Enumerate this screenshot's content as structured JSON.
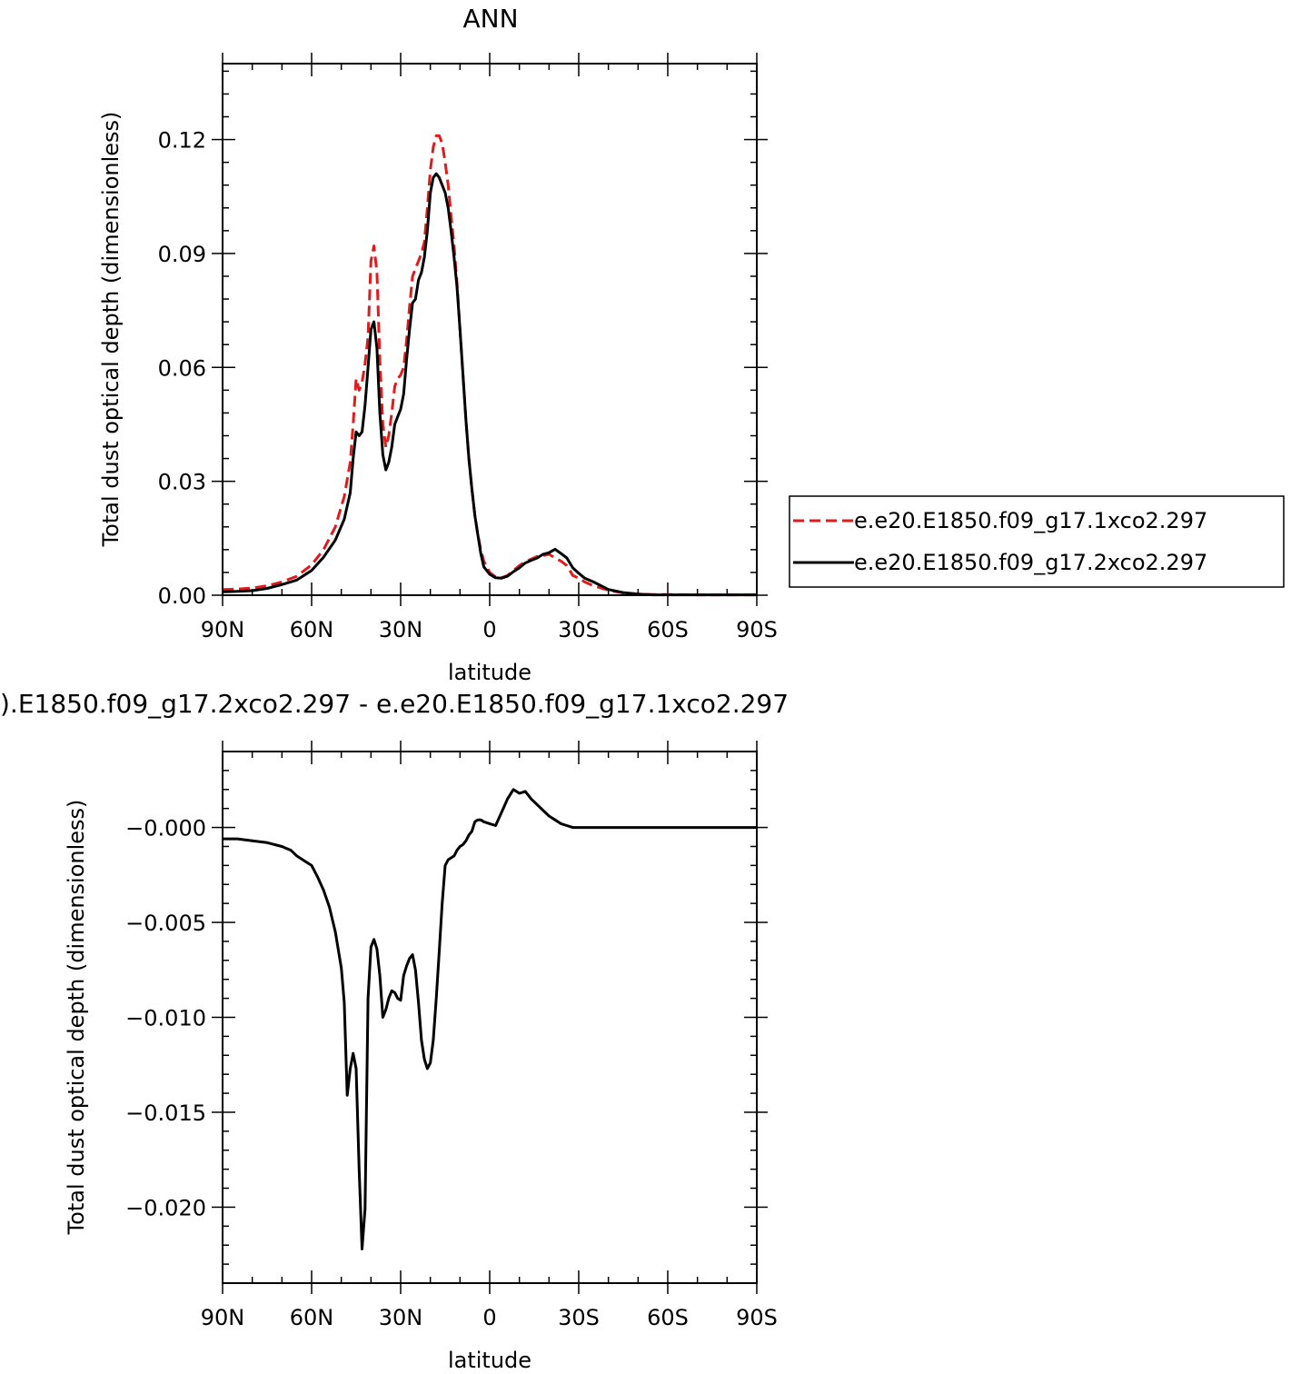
{
  "chart_data": [
    {
      "type": "line",
      "title": "ANN",
      "xlabel": "latitude",
      "ylabel": "Total dust optical depth (dimensionless)",
      "xlim": [
        90,
        -90
      ],
      "ylim": [
        0,
        0.14
      ],
      "x_ticks": [
        {
          "value": 90,
          "label": "90N"
        },
        {
          "value": 60,
          "label": "60N"
        },
        {
          "value": 30,
          "label": "30N"
        },
        {
          "value": 0,
          "label": "0"
        },
        {
          "value": -30,
          "label": "30S"
        },
        {
          "value": -60,
          "label": "60S"
        },
        {
          "value": -90,
          "label": "90S"
        }
      ],
      "y_ticks": [
        {
          "value": 0.0,
          "label": "0.00"
        },
        {
          "value": 0.03,
          "label": "0.03"
        },
        {
          "value": 0.06,
          "label": "0.06"
        },
        {
          "value": 0.09,
          "label": "0.09"
        },
        {
          "value": 0.12,
          "label": "0.12"
        }
      ],
      "legend_placement": "right",
      "series": [
        {
          "name": "e.e20.E1850.f09_g17.1xco2.297",
          "color": "#e31a1c",
          "dash": "dashed",
          "x": [
            90,
            85,
            80,
            75,
            70,
            65,
            60,
            56,
            52,
            49,
            47,
            46,
            45,
            44,
            43,
            42,
            41,
            40,
            39,
            38,
            37,
            36,
            35,
            34,
            33,
            32,
            31,
            30,
            29,
            28,
            27,
            26,
            25,
            24,
            23,
            22,
            21,
            20,
            19,
            18,
            17,
            16,
            15,
            14,
            13,
            12,
            11,
            10,
            9,
            8,
            7,
            6,
            5,
            4,
            3,
            2,
            0,
            -2,
            -4,
            -6,
            -8,
            -10,
            -12,
            -14,
            -16,
            -18,
            -20,
            -22,
            -24,
            -26,
            -28,
            -30,
            -32,
            -35,
            -40,
            -45,
            -50,
            -55,
            -60,
            -70,
            -80,
            -90
          ],
          "y": [
            0.0015,
            0.0016,
            0.0019,
            0.0025,
            0.0035,
            0.005,
            0.008,
            0.012,
            0.018,
            0.026,
            0.035,
            0.045,
            0.057,
            0.054,
            0.056,
            0.061,
            0.068,
            0.088,
            0.092,
            0.085,
            0.062,
            0.045,
            0.039,
            0.042,
            0.048,
            0.055,
            0.057,
            0.058,
            0.06,
            0.067,
            0.076,
            0.084,
            0.086,
            0.088,
            0.09,
            0.093,
            0.102,
            0.112,
            0.118,
            0.121,
            0.121,
            0.119,
            0.114,
            0.108,
            0.1,
            0.092,
            0.082,
            0.07,
            0.058,
            0.046,
            0.036,
            0.028,
            0.021,
            0.016,
            0.012,
            0.009,
            0.006,
            0.0048,
            0.0046,
            0.0052,
            0.0065,
            0.0078,
            0.0088,
            0.0095,
            0.0102,
            0.0104,
            0.0108,
            0.0098,
            0.009,
            0.0078,
            0.0052,
            0.0045,
            0.0035,
            0.0025,
            0.0013,
            0.0006,
            0.0003,
            0.0002,
            0.0002,
            0.0001,
            0.0001,
            0.0001
          ]
        },
        {
          "name": "e.e20.E1850.f09_g17.2xco2.297",
          "color": "#000000",
          "dash": "solid",
          "x": [
            90,
            85,
            80,
            75,
            70,
            65,
            60,
            56,
            52,
            49,
            47,
            46,
            45,
            44,
            43,
            42,
            41,
            40,
            39,
            38,
            37,
            36,
            35,
            34,
            33,
            32,
            31,
            30,
            29,
            28,
            27,
            26,
            25,
            24,
            23,
            22,
            21,
            20,
            19,
            18,
            17,
            16,
            15,
            14,
            13,
            12,
            11,
            10,
            9,
            8,
            7,
            6,
            5,
            4,
            3,
            2,
            0,
            -2,
            -4,
            -6,
            -8,
            -10,
            -12,
            -14,
            -16,
            -18,
            -20,
            -22,
            -24,
            -26,
            -28,
            -30,
            -32,
            -35,
            -40,
            -45,
            -50,
            -55,
            -60,
            -70,
            -80,
            -90
          ],
          "y": [
            0.0009,
            0.001,
            0.0012,
            0.0018,
            0.0028,
            0.004,
            0.0065,
            0.01,
            0.0145,
            0.02,
            0.027,
            0.036,
            0.043,
            0.042,
            0.043,
            0.05,
            0.06,
            0.07,
            0.072,
            0.065,
            0.048,
            0.037,
            0.033,
            0.035,
            0.039,
            0.045,
            0.047,
            0.049,
            0.053,
            0.062,
            0.07,
            0.077,
            0.078,
            0.083,
            0.085,
            0.089,
            0.096,
            0.106,
            0.11,
            0.111,
            0.11,
            0.108,
            0.106,
            0.102,
            0.096,
            0.089,
            0.081,
            0.07,
            0.058,
            0.046,
            0.036,
            0.028,
            0.021,
            0.016,
            0.011,
            0.0075,
            0.0055,
            0.0046,
            0.0045,
            0.005,
            0.0062,
            0.0072,
            0.0085,
            0.0092,
            0.0098,
            0.0108,
            0.0112,
            0.0121,
            0.011,
            0.0098,
            0.0072,
            0.0058,
            0.0045,
            0.0035,
            0.0015,
            0.0007,
            0.0003,
            0.0001,
            0.0001,
            0.0001,
            0.0001,
            0.0001
          ]
        }
      ]
    },
    {
      "type": "line",
      "title": ").E1850.f09_g17.2xco2.297 - e.e20.E1850.f09_g17.1xco2.297",
      "xlabel": "latitude",
      "ylabel": "Total dust optical depth (dimensionless)",
      "xlim": [
        90,
        -90
      ],
      "ylim": [
        -0.024,
        0.004
      ],
      "x_ticks": [
        {
          "value": 90,
          "label": "90N"
        },
        {
          "value": 60,
          "label": "60N"
        },
        {
          "value": 30,
          "label": "30N"
        },
        {
          "value": 0,
          "label": "0"
        },
        {
          "value": -30,
          "label": "30S"
        },
        {
          "value": -60,
          "label": "60S"
        },
        {
          "value": -90,
          "label": "90S"
        }
      ],
      "y_ticks": [
        {
          "value": 0.0,
          "label": "−0.000"
        },
        {
          "value": -0.005,
          "label": "−0.005"
        },
        {
          "value": -0.01,
          "label": "−0.010"
        },
        {
          "value": -0.015,
          "label": "−0.015"
        },
        {
          "value": -0.02,
          "label": "−0.020"
        }
      ],
      "series": [
        {
          "color": "#000000",
          "dash": "solid",
          "x": [
            90,
            85,
            80,
            75,
            70,
            67,
            65,
            62,
            60,
            58,
            56,
            54,
            52,
            50,
            49,
            48,
            47,
            46,
            45,
            44,
            43,
            42,
            41,
            40,
            39,
            38,
            37,
            36,
            35,
            34,
            33,
            32,
            31,
            30,
            29,
            28,
            27,
            26,
            25,
            24,
            23,
            22,
            21,
            20,
            19,
            18,
            17,
            16,
            15,
            14,
            13,
            12,
            11,
            10,
            9,
            8,
            7,
            6,
            5,
            4,
            3,
            2,
            0,
            -2,
            -4,
            -6,
            -8,
            -10,
            -12,
            -14,
            -16,
            -18,
            -20,
            -22,
            -24,
            -26,
            -28,
            -30,
            -32,
            -35,
            -40,
            -45,
            -50,
            -55,
            -60,
            -70,
            -80,
            -90
          ],
          "y": [
            -0.0006,
            -0.0006,
            -0.0007,
            -0.0008,
            -0.001,
            -0.0012,
            -0.0015,
            -0.0018,
            -0.002,
            -0.0026,
            -0.0033,
            -0.0042,
            -0.0055,
            -0.0074,
            -0.0092,
            -0.0141,
            -0.0127,
            -0.0119,
            -0.0127,
            -0.018,
            -0.0222,
            -0.0201,
            -0.009,
            -0.0063,
            -0.0059,
            -0.0064,
            -0.0078,
            -0.01,
            -0.0096,
            -0.009,
            -0.0086,
            -0.0087,
            -0.009,
            -0.0091,
            -0.0078,
            -0.0073,
            -0.0069,
            -0.0067,
            -0.0075,
            -0.0092,
            -0.0112,
            -0.0122,
            -0.0127,
            -0.0124,
            -0.0112,
            -0.009,
            -0.0065,
            -0.004,
            -0.002,
            -0.0017,
            -0.0016,
            -0.0015,
            -0.0012,
            -0.001,
            -0.0009,
            -0.0007,
            -0.0004,
            -0.0002,
            0.0003,
            0.0004,
            0.0004,
            0.0003,
            0.0002,
            0.0001,
            0.0008,
            0.0015,
            0.002,
            0.0018,
            0.0019,
            0.0015,
            0.0012,
            0.0009,
            0.0006,
            0.0004,
            0.0002,
            0.0001,
            0.0,
            0.0,
            0.0,
            0.0,
            0.0,
            0.0,
            0.0,
            0.0,
            0.0,
            0.0,
            0.0,
            0.0
          ]
        }
      ]
    }
  ]
}
